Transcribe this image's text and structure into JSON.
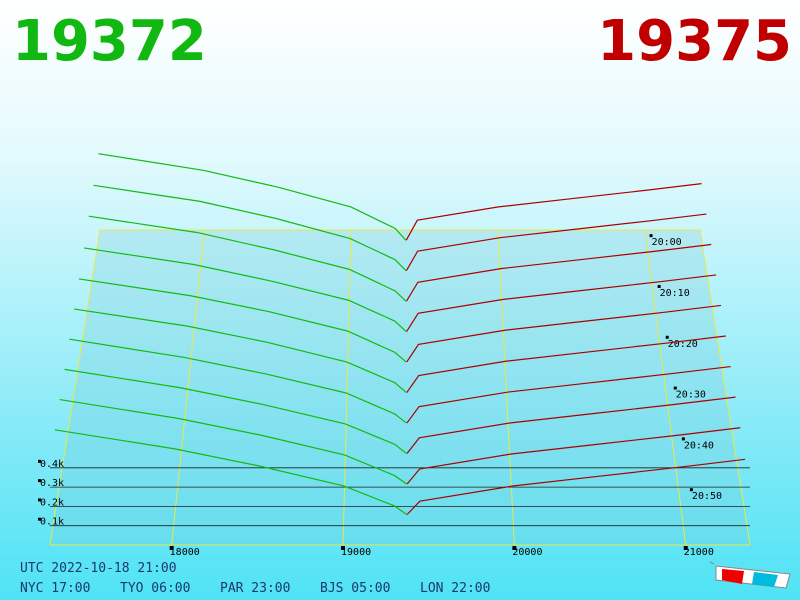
{
  "chart_data": {
    "type": "depth3d",
    "bid": 19372,
    "ask": 19375,
    "bid_color": "#12b812",
    "ask_color": "#c00000",
    "bid_line_color": "#11bb11",
    "ask_line_color": "#aa0000",
    "xlim": [
      17290,
      21375
    ],
    "xticks": [
      18000,
      19000,
      20000,
      21000
    ],
    "zlim": [
      0,
      500
    ],
    "zticks": [
      {
        "value": 100,
        "label": "0.1k"
      },
      {
        "value": 200,
        "label": "0.2k"
      },
      {
        "value": 300,
        "label": "0.3k"
      },
      {
        "value": 400,
        "label": "0.4k"
      }
    ],
    "tlim": [
      1198,
      1260
    ],
    "tticks": [
      {
        "value": 1200,
        "label": "20:00"
      },
      {
        "value": 1210,
        "label": "20:10"
      },
      {
        "value": 1220,
        "label": "20:20"
      },
      {
        "value": 1230,
        "label": "20:30"
      },
      {
        "value": 1240,
        "label": "20:40"
      },
      {
        "value": 1250,
        "label": "20:50"
      }
    ],
    "bid_prices": [
      19372,
      19300,
      19000,
      18500,
      18000,
      17290
    ],
    "ask_prices": [
      19375,
      19450,
      20000,
      20500,
      21000,
      21375
    ],
    "snapshots": [
      {
        "t": 1200,
        "bids": [
          0,
          70,
          200,
          320,
          420,
          520
        ],
        "asks": [
          0,
          120,
          200,
          250,
          300,
          340
        ]
      },
      {
        "t": 1206,
        "bids": [
          0,
          65,
          190,
          310,
          410,
          505
        ],
        "asks": [
          0,
          115,
          195,
          245,
          295,
          335
        ]
      },
      {
        "t": 1212,
        "bids": [
          0,
          60,
          185,
          300,
          400,
          495
        ],
        "asks": [
          0,
          110,
          190,
          240,
          290,
          330
        ]
      },
      {
        "t": 1218,
        "bids": [
          0,
          60,
          180,
          290,
          385,
          480
        ],
        "asks": [
          0,
          105,
          185,
          235,
          285,
          325
        ]
      },
      {
        "t": 1224,
        "bids": [
          0,
          55,
          175,
          285,
          375,
          470
        ],
        "asks": [
          0,
          100,
          180,
          230,
          280,
          320
        ]
      },
      {
        "t": 1230,
        "bids": [
          0,
          55,
          170,
          280,
          370,
          465
        ],
        "asks": [
          0,
          95,
          175,
          225,
          275,
          315
        ]
      },
      {
        "t": 1236,
        "bids": [
          0,
          50,
          165,
          270,
          360,
          460
        ],
        "asks": [
          0,
          90,
          170,
          220,
          270,
          310
        ]
      },
      {
        "t": 1242,
        "bids": [
          0,
          50,
          160,
          265,
          355,
          455
        ],
        "asks": [
          0,
          85,
          165,
          215,
          265,
          305
        ]
      },
      {
        "t": 1248,
        "bids": [
          0,
          45,
          155,
          260,
          350,
          450
        ],
        "asks": [
          0,
          80,
          160,
          210,
          260,
          300
        ]
      },
      {
        "t": 1254,
        "bids": [
          0,
          45,
          150,
          255,
          345,
          445
        ],
        "asks": [
          0,
          70,
          150,
          200,
          250,
          290
        ]
      }
    ]
  },
  "clock": {
    "utc": "UTC 2022-10-18 21:00",
    "cities": [
      "NYC 17:00",
      "TYO 06:00",
      "PAR 23:00",
      "BJS 05:00",
      "LON 22:00"
    ]
  }
}
